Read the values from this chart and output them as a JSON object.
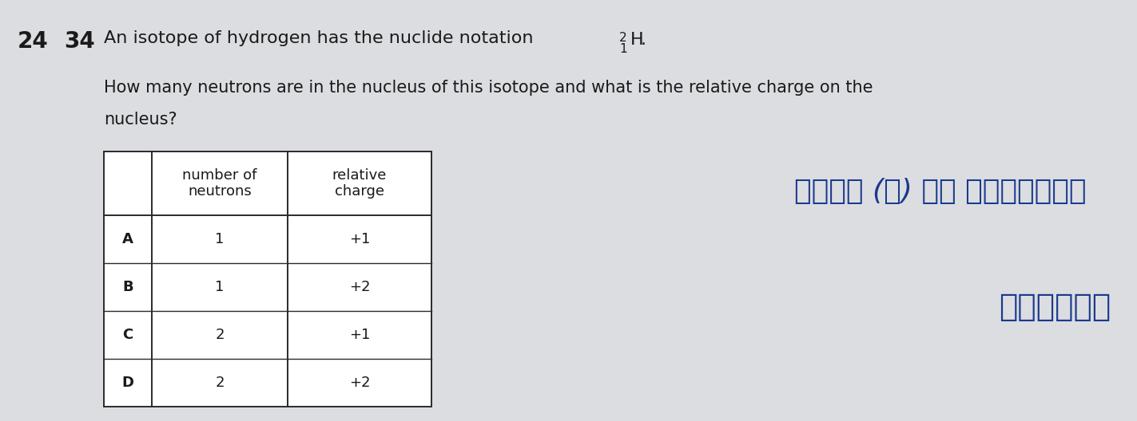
{
  "bg_color": "#dcdde0",
  "text_color": "#1a1a1a",
  "arabic_color": "#1a3a8f",
  "q_num": "24",
  "q_sub": "34",
  "title_text": "An isotope of hydrogen has the nuclide notation ²₁H.",
  "title_plain": "An isotope of hydrogen has the nuclide notation ",
  "nuclide_mass": "2",
  "nuclide_atomic": "1",
  "nuclide_symbol": "H",
  "question_line1": "How many neutrons are in the nucleus of this isotope and what is the relative charge on the",
  "question_line2": "nucleus?",
  "col2_h1": "number of",
  "col2_h2": "neutrons",
  "col3_h1": "relative",
  "col3_h2": "charge",
  "rows": [
    {
      "label": "A",
      "n": "1",
      "c": "+1"
    },
    {
      "label": "B",
      "n": "1",
      "c": "+2"
    },
    {
      "label": "C",
      "n": "2",
      "c": "+1"
    },
    {
      "label": "D",
      "n": "2",
      "c": "+2"
    }
  ],
  "fig_w": 14.23,
  "fig_h": 5.28,
  "dpi": 100
}
